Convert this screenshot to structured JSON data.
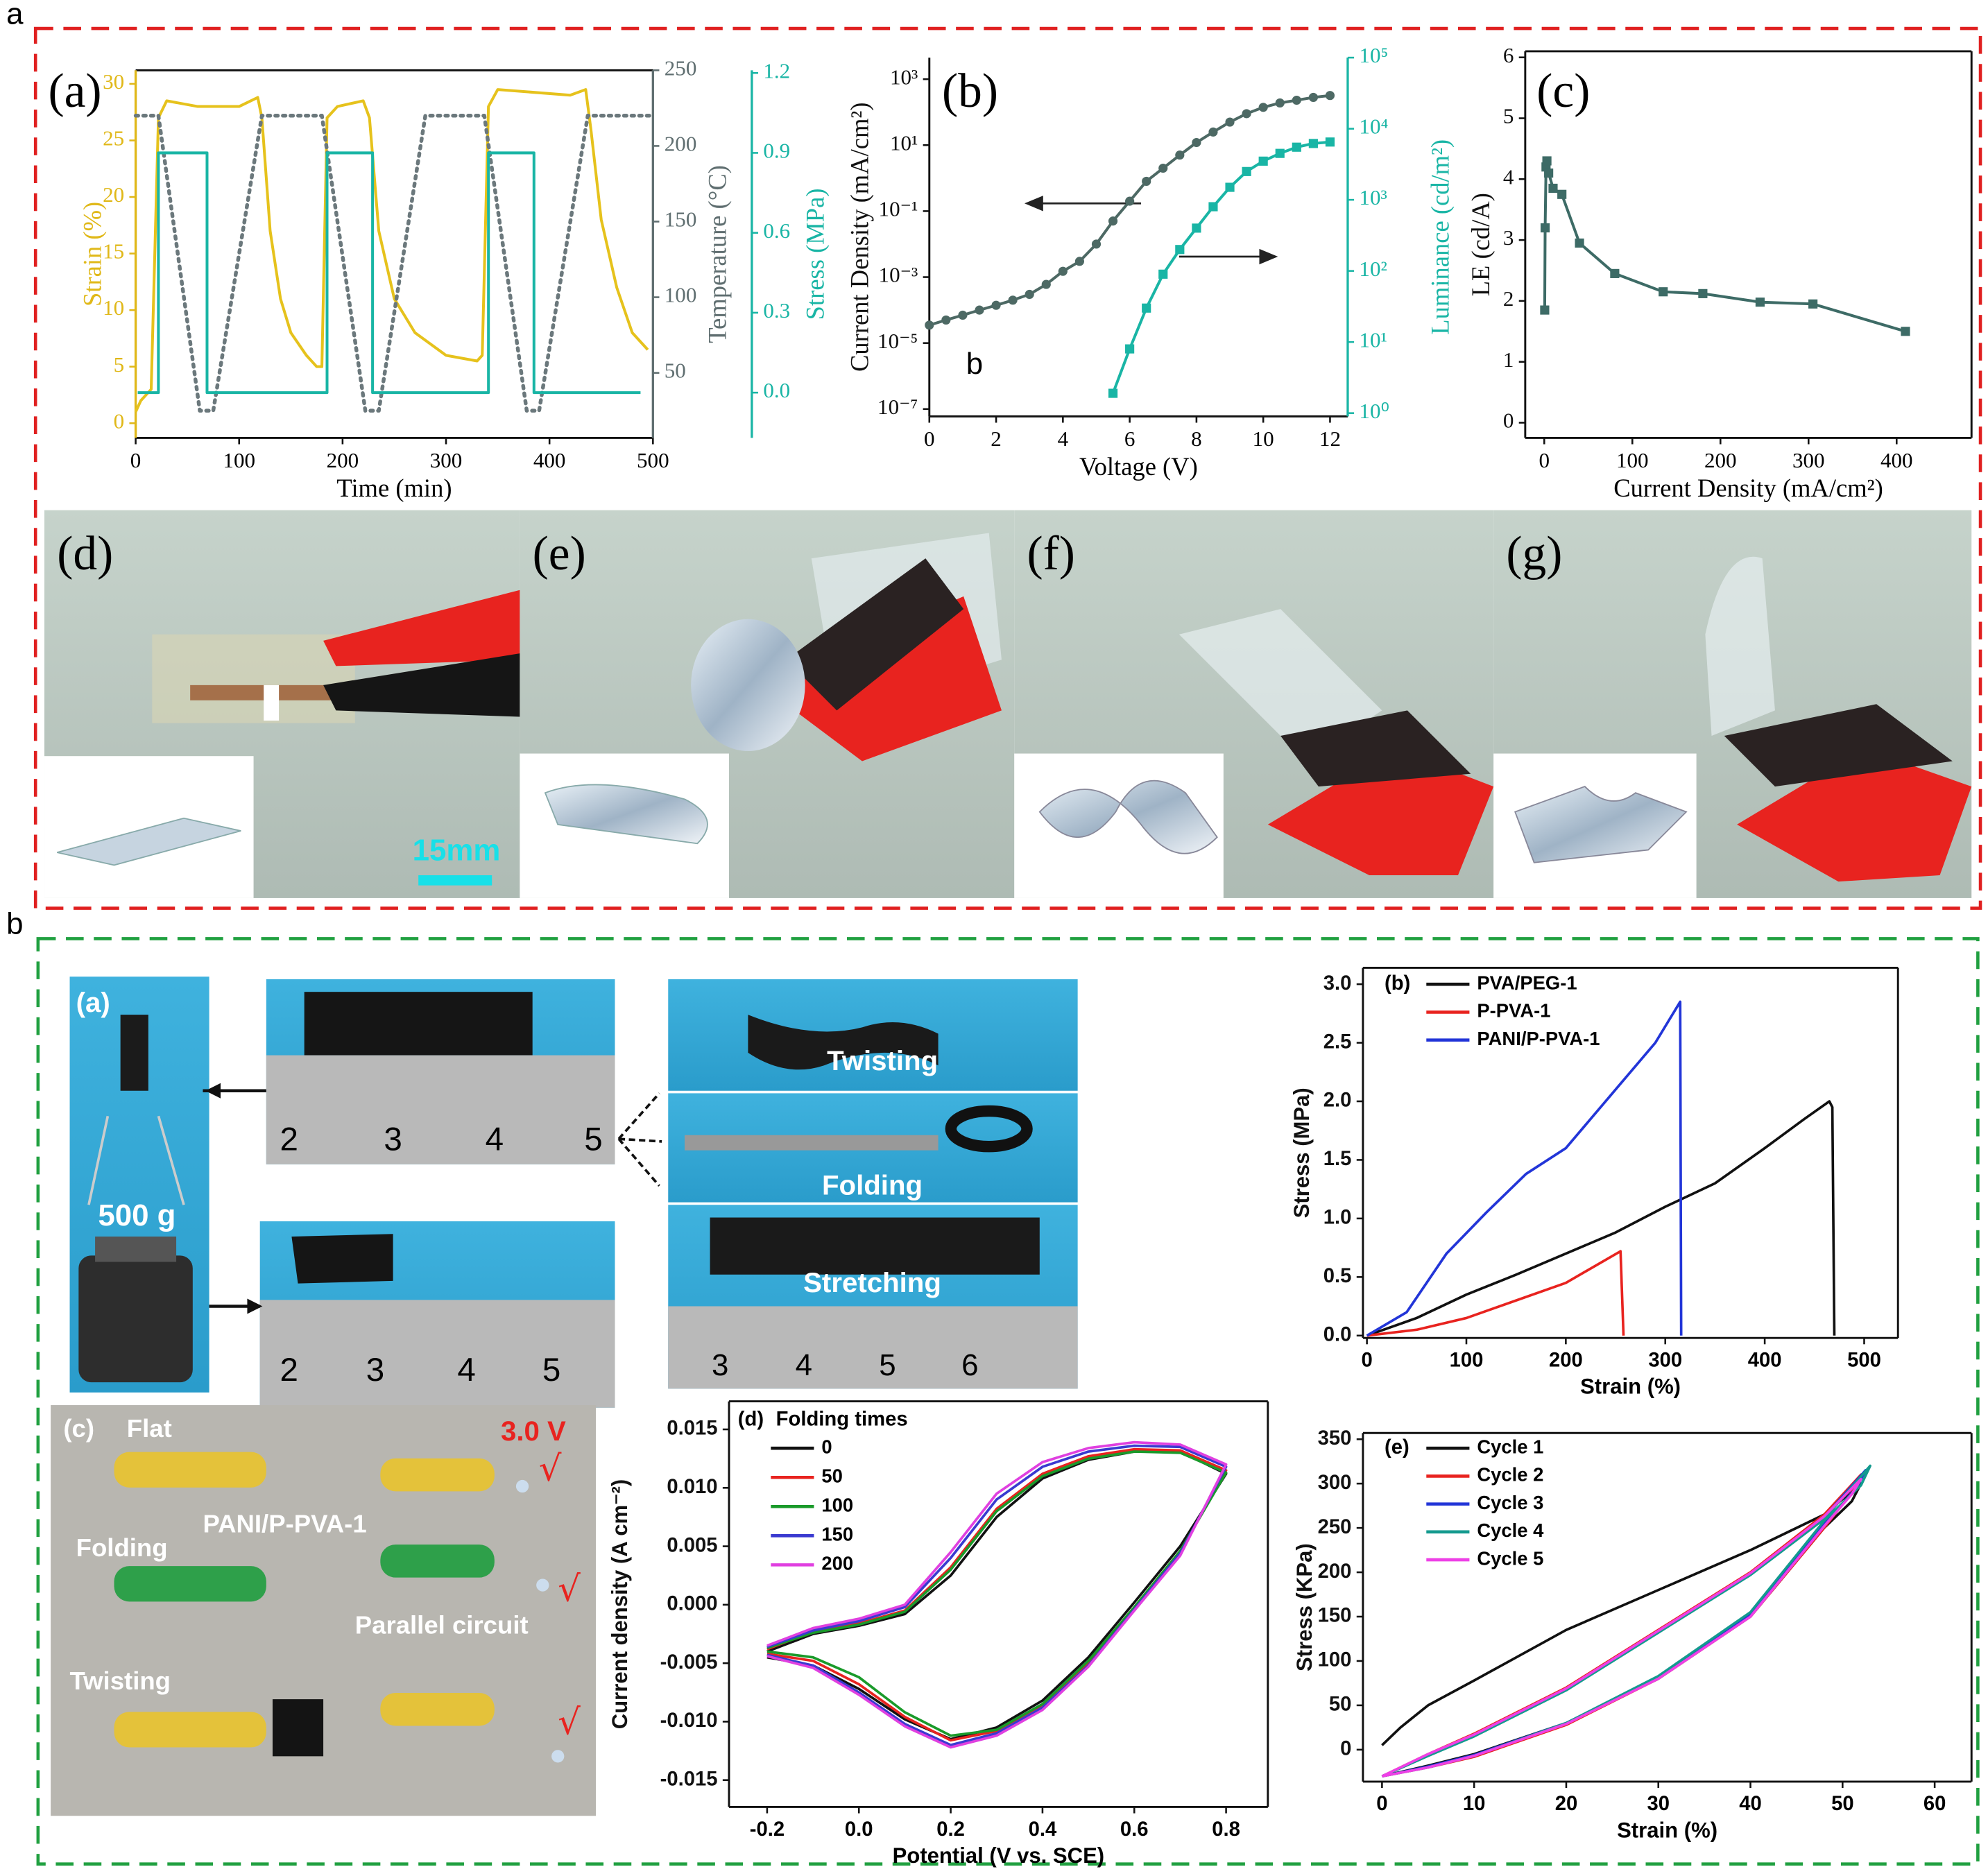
{
  "figure_labels": [
    "a",
    "b"
  ],
  "chart_data": [
    {
      "type": "line",
      "label": "(a)",
      "xlabel": "Time (min)",
      "ylabel": "Strain (%)",
      "y2label": "Temperature (°C)",
      "y3label": "Stress (MPa)",
      "xlim": [
        0,
        500
      ],
      "xticks": [
        0,
        100,
        200,
        300,
        400,
        500
      ],
      "ylim": [
        -1.3,
        31.2
      ],
      "yticks": [
        0,
        5,
        10,
        15,
        20,
        25,
        30
      ],
      "y_color": "#e0b818",
      "y2lim": [
        7,
        250
      ],
      "y2ticks": [
        50,
        100,
        150,
        200,
        250
      ],
      "y2_color": "#5f6e70",
      "y3lim": [
        -0.17,
        1.21
      ],
      "y3ticks": [
        {
          "value": 0,
          "label": "0.0"
        },
        0.3,
        0.6,
        0.9,
        1.2
      ],
      "y3_color": "#19b5a5",
      "series": [
        {
          "color": "#e6c21c",
          "axis": "y",
          "x": [
            0,
            5,
            15,
            22,
            30,
            60,
            100,
            118,
            122,
            130,
            140,
            150,
            165,
            175,
            180,
            185,
            195,
            220,
            226,
            235,
            250,
            270,
            300,
            330,
            335,
            341,
            350,
            420,
            435,
            440,
            450,
            465,
            480,
            495
          ],
          "values": [
            1,
            2,
            3,
            27,
            28.5,
            28,
            28,
            28.8,
            27,
            17,
            11,
            8,
            6,
            5,
            5,
            27,
            28,
            28.5,
            27,
            17,
            11,
            8,
            6,
            5.5,
            6,
            28,
            29.5,
            29,
            29.5,
            26,
            18,
            12,
            8,
            6.5
          ]
        },
        {
          "color": "#6b787c",
          "axis": "y2",
          "style": "dotted",
          "x": [
            0,
            22,
            62,
            75,
            122,
            180,
            222,
            235,
            280,
            337,
            378,
            390,
            437,
            500
          ],
          "values": [
            220,
            220,
            25,
            25,
            220,
            220,
            25,
            25,
            220,
            220,
            25,
            25,
            220,
            220
          ]
        },
        {
          "color": "#19b5a5",
          "axis": "y3",
          "x": [
            2,
            22,
            22,
            69,
            69,
            185,
            185,
            229,
            229,
            341,
            341,
            385,
            385,
            488
          ],
          "values": [
            0,
            0,
            0.9,
            0.9,
            0,
            0,
            0.9,
            0.9,
            0,
            0,
            0.9,
            0.9,
            0,
            0
          ]
        }
      ]
    },
    {
      "type": "line",
      "label": "(b)",
      "annotation": "b",
      "xlabel": "Voltage (V)",
      "ylabel": "Current Density (mA/cm²)",
      "y2label": "Luminance (cd/m²)",
      "xlim": [
        0,
        12.53
      ],
      "xticks": [
        0,
        2,
        4,
        6,
        8,
        10,
        12
      ],
      "ylog": true,
      "ylim": [
        6e-08,
        4500
      ],
      "yticks": [
        {
          "value": 1e-07,
          "label": "10⁻⁷"
        },
        {
          "value": 1e-05,
          "label": "10⁻⁵"
        },
        {
          "value": 0.001,
          "label": "10⁻³"
        },
        {
          "value": 0.1,
          "label": "10⁻¹"
        },
        {
          "value": 10,
          "label": "10¹"
        },
        {
          "value": 1000,
          "label": "10³"
        }
      ],
      "y2log": true,
      "y2lim": [
        0.9,
        100000
      ],
      "y2_color": "#19b5a5",
      "y2ticks": [
        {
          "value": 1,
          "label": "10⁰"
        },
        {
          "value": 10,
          "label": "10¹"
        },
        {
          "value": 100,
          "label": "10²"
        },
        {
          "value": 1000,
          "label": "10³"
        },
        {
          "value": 10000,
          "label": "10⁴"
        },
        {
          "value": 100000,
          "label": "10⁵"
        }
      ],
      "series": [
        {
          "color": "#4d6964",
          "marker": "circle",
          "axis": "y",
          "x": [
            0,
            0.5,
            1,
            1.5,
            2,
            2.5,
            3,
            3.5,
            4,
            4.5,
            5,
            5.5,
            6,
            6.5,
            7,
            7.5,
            8,
            8.5,
            9,
            9.5,
            10,
            10.5,
            11,
            11.5,
            12
          ],
          "values": [
            3.5e-05,
            5e-05,
            7e-05,
            0.0001,
            0.00014,
            0.0002,
            0.0003,
            0.0006,
            0.0015,
            0.003,
            0.01,
            0.05,
            0.2,
            0.8,
            2,
            5,
            12,
            25,
            50,
            90,
            140,
            190,
            230,
            280,
            320
          ]
        },
        {
          "color": "#19b5a5",
          "marker": "square",
          "axis": "y2",
          "x": [
            5.5,
            6,
            6.5,
            7,
            7.5,
            8,
            8.5,
            9,
            9.5,
            10,
            10.5,
            11,
            11.5,
            12
          ],
          "values": [
            1.9,
            8,
            30,
            90,
            200,
            400,
            800,
            1500,
            2500,
            3500,
            4500,
            5500,
            6200,
            6500
          ]
        }
      ]
    },
    {
      "type": "line",
      "label": "(c)",
      "xlabel": "Current Density (mA/cm²)",
      "ylabel": "LE (cd/A)",
      "xlim": [
        -21.6,
        485
      ],
      "xticks": [
        0,
        100,
        200,
        300,
        400
      ],
      "ylim": [
        -0.25,
        6.1
      ],
      "yticks": [
        0,
        1,
        2,
        3,
        4,
        5,
        6
      ],
      "series": [
        {
          "color": "#3d6b66",
          "marker": "square",
          "x": [
            0.5,
            1,
            2,
            3,
            5,
            10,
            20,
            40,
            80,
            135,
            180,
            245,
            305,
            410
          ],
          "values": [
            1.85,
            3.2,
            4.2,
            4.3,
            4.1,
            3.85,
            3.75,
            2.95,
            2.45,
            2.15,
            2.12,
            1.98,
            1.95,
            1.5
          ]
        }
      ]
    },
    {
      "type": "line",
      "label": "(b)",
      "xlabel": "Strain (%)",
      "ylabel": "Stress (MPa)",
      "legend": "upper left",
      "xlim": [
        -4,
        534
      ],
      "xticks": [
        0,
        100,
        200,
        300,
        400,
        500
      ],
      "ylim": [
        -0.02,
        3.14
      ],
      "yticks": [
        {
          "value": 0,
          "label": "0.0"
        },
        0.5,
        {
          "value": 1,
          "label": "1.0"
        },
        1.5,
        {
          "value": 2,
          "label": "2.0"
        },
        2.5,
        {
          "value": 3,
          "label": "3.0"
        }
      ],
      "series": [
        {
          "name": "PVA/PEG-1",
          "color": "#111111",
          "x": [
            0,
            50,
            100,
            150,
            200,
            250,
            300,
            350,
            400,
            440,
            465,
            468,
            470
          ],
          "values": [
            0,
            0.15,
            0.35,
            0.52,
            0.7,
            0.88,
            1.1,
            1.3,
            1.6,
            1.85,
            2.0,
            1.95,
            0
          ]
        },
        {
          "name": "P-PVA-1",
          "color": "#e8231f",
          "x": [
            0,
            50,
            100,
            150,
            200,
            255,
            258
          ],
          "values": [
            0,
            0.05,
            0.15,
            0.3,
            0.45,
            0.72,
            0
          ]
        },
        {
          "name": "PANI/P-PVA-1",
          "color": "#2235d8",
          "x": [
            0,
            40,
            80,
            120,
            160,
            200,
            250,
            290,
            315,
            316
          ],
          "values": [
            0,
            0.2,
            0.7,
            1.05,
            1.38,
            1.6,
            2.1,
            2.5,
            2.85,
            0
          ]
        }
      ]
    },
    {
      "type": "line",
      "label": "(d)",
      "legend_title": "Folding times",
      "xlabel": "Potential (V vs. SCE)",
      "ylabel": "Current density (A cm⁻²)",
      "legend": "upper left",
      "xlim": [
        -0.283,
        0.891
      ],
      "xticks": [
        -0.2,
        {
          "value": 0,
          "label": "0.0"
        },
        0.2,
        0.4,
        0.6,
        0.8
      ],
      "ylim": [
        -0.0173,
        0.0174
      ],
      "yticks": [
        -0.015,
        {
          "value": -0.01,
          "label": "-0.010"
        },
        -0.005,
        {
          "value": 0,
          "label": "0.000"
        },
        0.005,
        {
          "value": 0.01,
          "label": "0.010"
        },
        0.015
      ],
      "x": [
        -0.2,
        -0.1,
        0,
        0.1,
        0.2,
        0.3,
        0.4,
        0.5,
        0.6,
        0.7,
        0.8,
        0.7,
        0.6,
        0.5,
        0.4,
        0.3,
        0.2,
        0.1,
        0,
        -0.1,
        -0.2
      ],
      "series": [
        {
          "name": "0",
          "color": "#111111",
          "values": [
            -0.004,
            -0.0025,
            -0.0018,
            -0.0008,
            0.0025,
            0.0075,
            0.0108,
            0.0124,
            0.0131,
            0.0131,
            0.0112,
            0.005,
            0.0002,
            -0.0045,
            -0.0082,
            -0.0105,
            -0.0115,
            -0.0098,
            -0.0072,
            -0.0052,
            -0.0045
          ]
        },
        {
          "name": "50",
          "color": "#e8231f",
          "values": [
            -0.0038,
            -0.0023,
            -0.0016,
            -0.0005,
            0.0032,
            0.0082,
            0.0112,
            0.0127,
            0.0133,
            0.0132,
            0.0115,
            0.0045,
            -0.0003,
            -0.005,
            -0.0086,
            -0.0108,
            -0.0116,
            -0.0096,
            -0.0068,
            -0.0048,
            -0.0042
          ]
        },
        {
          "name": "100",
          "color": "#1a9a2a",
          "values": [
            -0.0037,
            -0.0024,
            -0.0017,
            -0.0006,
            0.003,
            0.008,
            0.011,
            0.0125,
            0.0131,
            0.013,
            0.0113,
            0.0046,
            -0.0002,
            -0.0048,
            -0.0085,
            -0.0107,
            -0.0112,
            -0.0092,
            -0.0062,
            -0.0045,
            -0.004
          ]
        },
        {
          "name": "150",
          "color": "#3a3ad0",
          "values": [
            -0.0036,
            -0.0022,
            -0.0014,
            -0.0002,
            0.004,
            0.009,
            0.0118,
            0.0131,
            0.0136,
            0.0135,
            0.0118,
            0.0044,
            -0.0004,
            -0.0052,
            -0.0088,
            -0.011,
            -0.012,
            -0.0102,
            -0.0075,
            -0.0052,
            -0.0043
          ]
        },
        {
          "name": "200",
          "color": "#e040e0",
          "values": [
            -0.0035,
            -0.002,
            -0.0012,
            0,
            0.0045,
            0.0095,
            0.0122,
            0.0134,
            0.0139,
            0.0137,
            0.012,
            0.0042,
            -0.0005,
            -0.0053,
            -0.009,
            -0.0112,
            -0.0122,
            -0.0104,
            -0.0077,
            -0.0054,
            -0.0044
          ]
        }
      ]
    },
    {
      "type": "line",
      "label": "(e)",
      "xlabel": "Strain (%)",
      "ylabel": "Stress (KPa)",
      "legend": "upper left",
      "xlim": [
        -2.07,
        64
      ],
      "xticks": [
        0,
        10,
        20,
        30,
        40,
        50,
        60
      ],
      "ylim": [
        -36,
        357
      ],
      "yticks": [
        0,
        50,
        100,
        150,
        200,
        250,
        300,
        350
      ],
      "series": [
        {
          "name": "Cycle 1",
          "color": "#111111",
          "x": [
            0,
            2,
            5,
            10,
            20,
            30,
            40,
            48,
            52,
            51,
            48,
            40,
            30,
            20,
            10,
            5,
            0
          ],
          "values": [
            5,
            25,
            50,
            78,
            135,
            180,
            225,
            265,
            300,
            280,
            250,
            150,
            80,
            30,
            -5,
            -18,
            -30
          ]
        },
        {
          "name": "Cycle 2",
          "color": "#e8231f",
          "x": [
            0,
            5,
            10,
            20,
            30,
            40,
            48,
            52,
            51,
            48,
            40,
            30,
            20,
            10,
            5,
            0
          ],
          "values": [
            -30,
            -5,
            18,
            70,
            135,
            200,
            265,
            310,
            290,
            250,
            150,
            80,
            28,
            -8,
            -20,
            -30
          ]
        },
        {
          "name": "Cycle 3",
          "color": "#2235d8",
          "x": [
            0,
            5,
            10,
            20,
            30,
            40,
            48,
            52.5,
            51.5,
            48,
            40,
            30,
            20,
            10,
            5,
            0
          ],
          "values": [
            -30,
            -6,
            16,
            68,
            133,
            198,
            262,
            315,
            295,
            255,
            152,
            82,
            30,
            -6,
            -19,
            -30
          ]
        },
        {
          "name": "Cycle 4",
          "color": "#139a8e",
          "x": [
            0,
            5,
            10,
            20,
            30,
            40,
            48,
            53,
            52,
            48,
            40,
            30,
            20,
            10,
            5,
            0
          ],
          "values": [
            -30,
            -7,
            15,
            67,
            132,
            197,
            260,
            320,
            298,
            258,
            155,
            83,
            30,
            -7,
            -20,
            -30
          ]
        },
        {
          "name": "Cycle 5",
          "color": "#ee40e6",
          "x": [
            0,
            5,
            10,
            20,
            30,
            40,
            48,
            52,
            51,
            48,
            40,
            30,
            20,
            10,
            5,
            0
          ],
          "values": [
            -30,
            -5,
            17,
            69,
            134,
            199,
            263,
            305,
            288,
            252,
            150,
            80,
            29,
            -7,
            -20,
            -30
          ]
        }
      ]
    }
  ],
  "photos": {
    "upper": [
      {
        "label": "(d)",
        "scale": "15mm"
      },
      {
        "label": "(e)"
      },
      {
        "label": "(f)"
      },
      {
        "label": "(g)"
      }
    ],
    "lower": {
      "a": {
        "label": "(a)",
        "weight": "500 g",
        "ruler_top": [
          "2",
          "3",
          "4",
          "5"
        ],
        "ruler_bottom": [
          "2",
          "3",
          "4",
          "5"
        ],
        "modes": [
          "Twisting",
          "Folding",
          "Stretching"
        ],
        "stretch_ruler": [
          "3",
          "4",
          "5",
          "6"
        ]
      },
      "c": {
        "label": "(c)",
        "texts": [
          "Flat",
          "3.0 V",
          "PANI/P-PVA-1",
          "Folding",
          "Parallel circuit",
          "Twisting"
        ],
        "checks": [
          "√",
          "√",
          "√"
        ]
      }
    }
  }
}
